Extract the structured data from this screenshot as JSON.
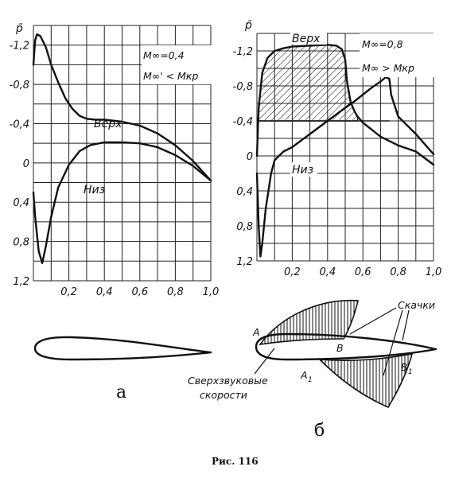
{
  "chart_data": [
    {
      "type": "line",
      "panel_label": "а",
      "ylabel": "p̄",
      "x_ticks": [
        "0,2",
        "0,4",
        "0,6",
        "0,8",
        "1,0"
      ],
      "y_ticks": [
        "-1,2",
        "-0,8",
        "-0,4",
        "0",
        "0,4",
        "0,8",
        "1,2"
      ],
      "xlim": [
        0,
        1.0
      ],
      "ylim": [
        -1.4,
        1.2
      ],
      "y_inverted": true,
      "grid": true,
      "annotation_lines": [
        "M∞=0,4",
        "M∞' < Mкр"
      ],
      "series": [
        {
          "name": "Верх",
          "x": [
            0.0,
            0.01,
            0.02,
            0.04,
            0.07,
            0.1,
            0.14,
            0.18,
            0.22,
            0.26,
            0.3,
            0.35,
            0.4,
            0.5,
            0.6,
            0.7,
            0.8,
            0.9,
            1.0
          ],
          "y": [
            -1.0,
            -1.25,
            -1.31,
            -1.29,
            -1.18,
            -1.0,
            -0.82,
            -0.66,
            -0.55,
            -0.48,
            -0.45,
            -0.44,
            -0.44,
            -0.42,
            -0.38,
            -0.3,
            -0.18,
            -0.02,
            0.18
          ]
        },
        {
          "name": "Низ",
          "x": [
            0.0,
            0.01,
            0.03,
            0.05,
            0.07,
            0.1,
            0.14,
            0.2,
            0.26,
            0.32,
            0.4,
            0.5,
            0.6,
            0.7,
            0.8,
            0.9,
            1.0
          ],
          "y": [
            0.3,
            0.55,
            0.9,
            1.02,
            0.85,
            0.55,
            0.25,
            0.02,
            -0.12,
            -0.18,
            -0.21,
            -0.21,
            -0.2,
            -0.16,
            -0.08,
            0.03,
            0.18
          ]
        }
      ]
    },
    {
      "type": "line",
      "panel_label": "б",
      "ylabel": "p̄",
      "x_ticks": [
        "0,2",
        "0,4",
        "0,6",
        "0,8",
        "1,0"
      ],
      "y_ticks": [
        "-1,2",
        "-0,8",
        "-0,4",
        "0",
        "0,4",
        "0,8",
        "1,2"
      ],
      "xlim": [
        0,
        1.0
      ],
      "ylim": [
        -1.4,
        1.2
      ],
      "y_inverted": true,
      "grid": true,
      "annotation_lines": [
        "M∞=0,8",
        "M∞ > Mкр"
      ],
      "hatched_region_above": -0.4,
      "series": [
        {
          "name": "Верх",
          "x": [
            0.0,
            0.01,
            0.03,
            0.06,
            0.1,
            0.15,
            0.2,
            0.3,
            0.4,
            0.45,
            0.48,
            0.5,
            0.51,
            0.53,
            0.55,
            0.57,
            0.6,
            0.7,
            0.8,
            0.9,
            1.0
          ],
          "y": [
            0.0,
            -0.55,
            -0.95,
            -1.12,
            -1.2,
            -1.23,
            -1.25,
            -1.26,
            -1.27,
            -1.26,
            -1.22,
            -1.1,
            -0.85,
            -0.62,
            -0.52,
            -0.45,
            -0.38,
            -0.22,
            -0.12,
            -0.05,
            0.1
          ]
        },
        {
          "name": "Низ",
          "x": [
            0.0,
            0.01,
            0.02,
            0.03,
            0.05,
            0.08,
            0.1,
            0.15,
            0.2,
            0.3,
            0.4,
            0.5,
            0.55,
            0.6,
            0.65,
            0.7,
            0.73,
            0.75,
            0.76,
            0.8,
            0.9,
            1.0
          ],
          "y": [
            0.2,
            0.8,
            1.15,
            1.0,
            0.6,
            0.2,
            0.05,
            -0.05,
            -0.1,
            -0.25,
            -0.4,
            -0.55,
            -0.62,
            -0.7,
            -0.78,
            -0.85,
            -0.9,
            -0.88,
            -0.7,
            -0.45,
            -0.25,
            -0.02
          ]
        }
      ]
    }
  ],
  "airfoil_labels": {
    "A": "A",
    "B": "B",
    "A1": "A",
    "A1_sub": "1",
    "B1": "B",
    "B1_sub": "1",
    "shocks": "Скачки",
    "supersonic_line1": "Сверхзвуковые",
    "supersonic_line2": "скорости"
  },
  "caption": "Рис. 116"
}
